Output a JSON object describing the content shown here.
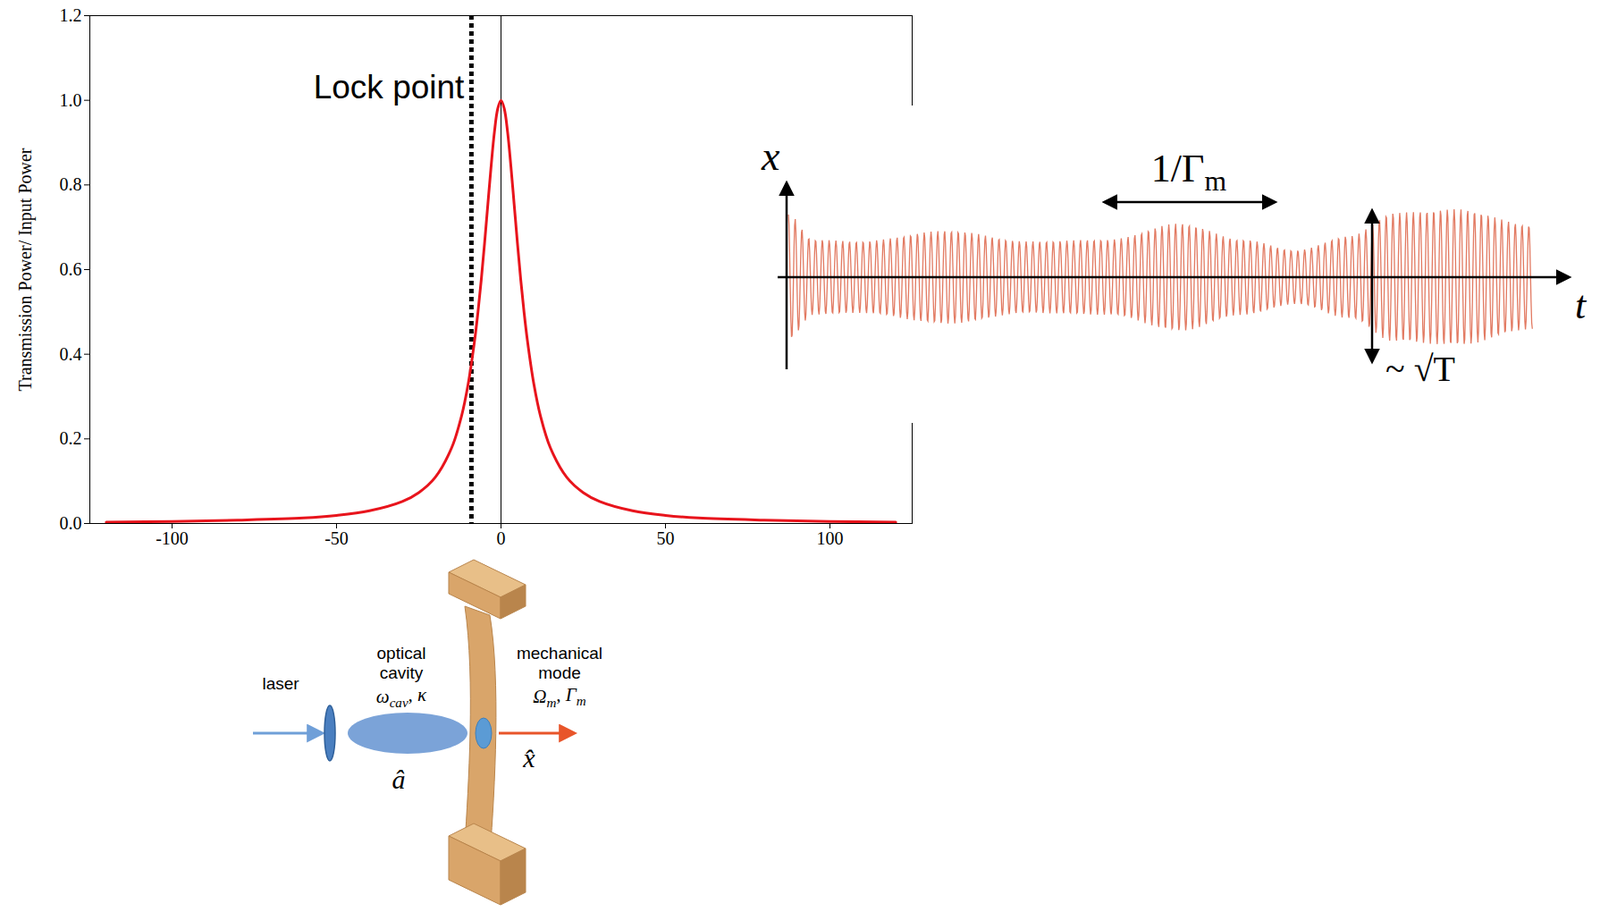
{
  "chart_data": {
    "type": "line",
    "x": [
      -120,
      -100,
      -80,
      -60,
      -50,
      -40,
      -30,
      -25,
      -20,
      -15,
      -12,
      -10,
      -8,
      -7,
      -6,
      -5,
      -4,
      -3,
      -2,
      -1,
      0,
      1,
      2,
      3,
      4,
      5,
      6,
      7,
      8,
      10,
      12,
      15,
      20,
      25,
      30,
      40,
      50,
      60,
      80,
      100,
      120
    ],
    "values": [
      0.003,
      0.005,
      0.008,
      0.013,
      0.019,
      0.03,
      0.052,
      0.073,
      0.109,
      0.179,
      0.254,
      0.329,
      0.434,
      0.5,
      0.576,
      0.662,
      0.754,
      0.845,
      0.925,
      0.98,
      1,
      0.98,
      0.925,
      0.845,
      0.754,
      0.662,
      0.576,
      0.5,
      0.434,
      0.329,
      0.254,
      0.179,
      0.109,
      0.073,
      0.052,
      0.03,
      0.019,
      0.013,
      0.008,
      0.005,
      0.003
    ],
    "color": "#e8141c",
    "y_label": "Transmission Power/ Input Power",
    "xlim": [
      -125,
      125
    ],
    "xticks": [
      -100,
      -50,
      0,
      50,
      100
    ],
    "ylim": [
      0,
      1.2
    ],
    "yticks": [
      {
        "value": 0,
        "label": "0.0"
      },
      {
        "value": 0.2,
        "label": "0.2"
      },
      {
        "value": 0.4,
        "label": "0.4"
      },
      {
        "value": 0.6,
        "label": "0.6"
      },
      {
        "value": 0.8,
        "label": "0.8"
      },
      {
        "value": 1,
        "label": "1.0"
      },
      {
        "value": 1.2,
        "label": "1.2"
      }
    ],
    "grid": false,
    "reference_line": {
      "x": 0
    },
    "annotations": [
      {
        "text": "Lock point",
        "x": -9,
        "y": 1.03
      }
    ]
  },
  "diagram": {
    "signal_plot": {
      "y_axis": "x",
      "x_axis": "t",
      "period_label": [
        {
          "t": "1/Γ"
        },
        {
          "sub": "m"
        }
      ],
      "amplitude_label": "~ √T"
    },
    "setup": {
      "laser": "laser",
      "cavity_lines": [
        "optical",
        "cavity"
      ],
      "cavity_params": [
        {
          "t": "ω"
        },
        {
          "sub": "cav"
        },
        {
          "t": ", κ"
        }
      ],
      "cavity_operator": "â",
      "mechanical_lines": [
        "mechanical",
        "mode"
      ],
      "mechanical_params": [
        {
          "t": "Ω"
        },
        {
          "sub": "m"
        },
        {
          "t": ", Γ"
        },
        {
          "sub": "m"
        }
      ],
      "position_operator": "x̂"
    }
  }
}
